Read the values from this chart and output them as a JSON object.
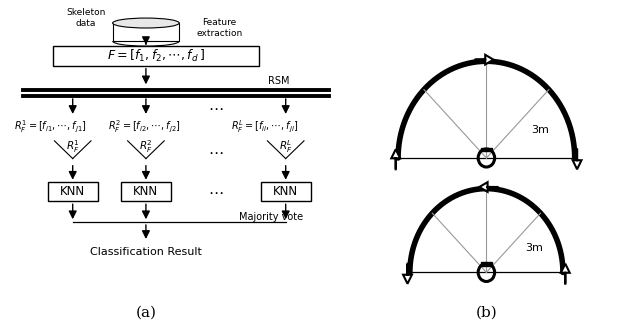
{
  "fig_width": 6.4,
  "fig_height": 3.29,
  "bg_color": "#ffffff",
  "black": "#000000",
  "gray": "#aaaaaa",
  "label_a": "(a)",
  "label_b": "(b)",
  "dist_label": "3m"
}
